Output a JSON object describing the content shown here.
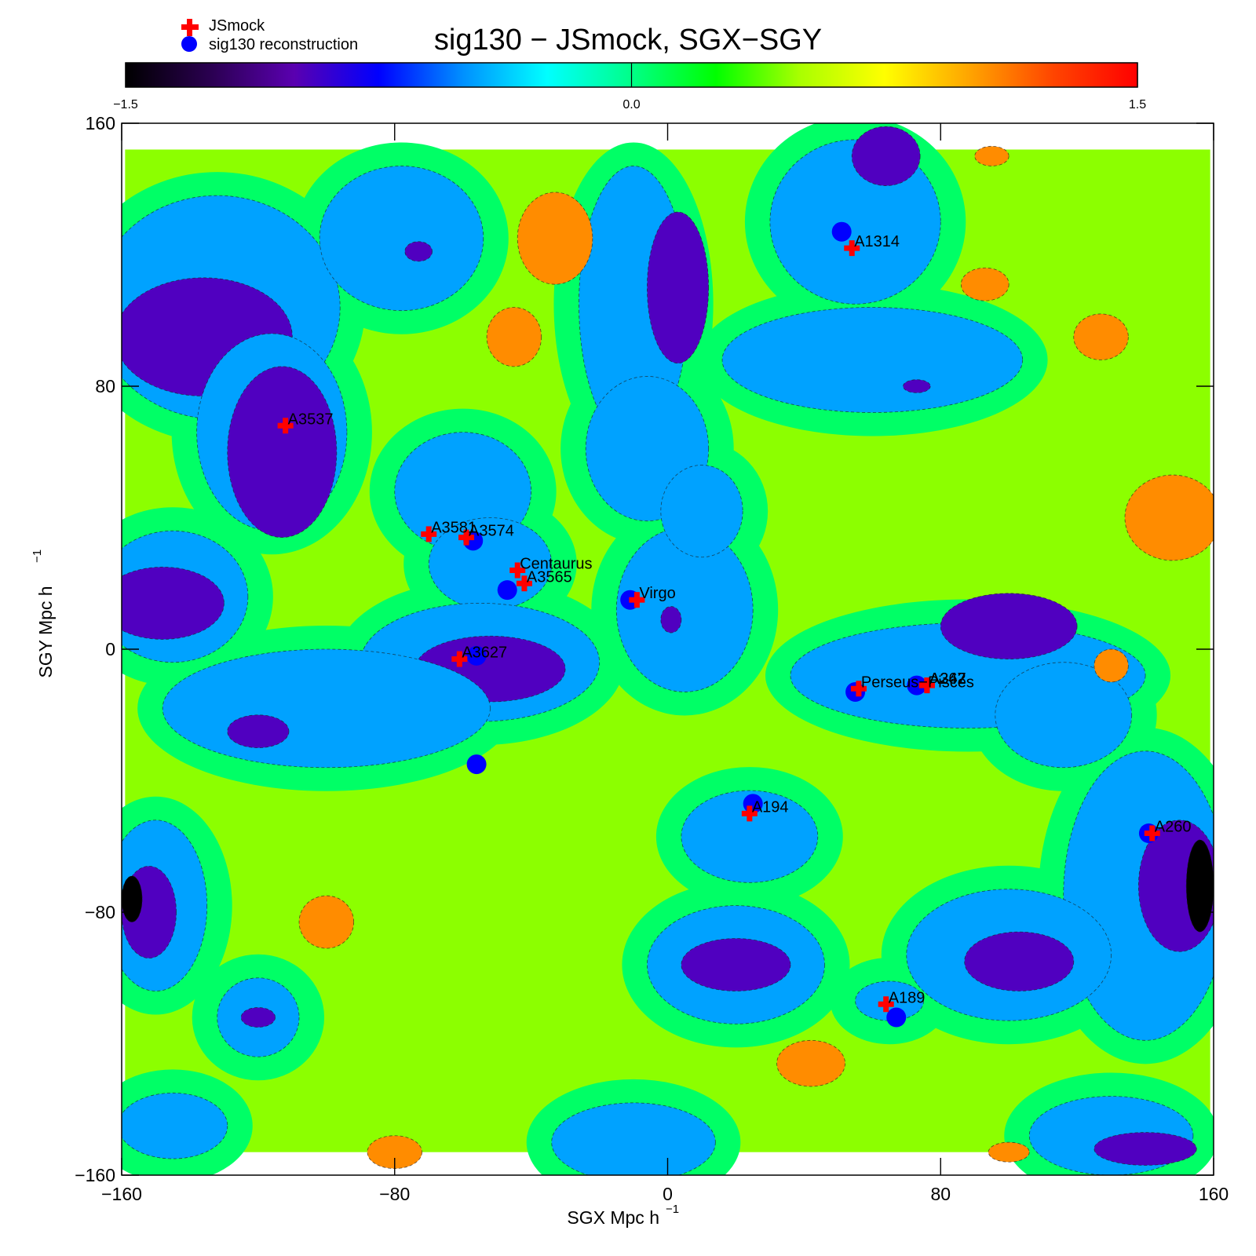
{
  "chart_data": {
    "type": "heatmap",
    "title": "sig130 − JSmock, SGX−SGY",
    "xlabel": "SGX  Mpc h",
    "ylabel": "SGY  Mpc h",
    "unit_superscript": "−1",
    "xlim": [
      -160,
      160
    ],
    "ylim": [
      -160,
      160
    ],
    "xticks": [
      -160,
      -80,
      0,
      80,
      160
    ],
    "yticks": [
      -160,
      -80,
      0,
      80,
      160
    ],
    "xtick_labels": [
      "−160",
      "−80",
      "0",
      "80",
      "160"
    ],
    "ytick_labels": [
      "−160",
      "−80",
      "0",
      "80",
      "160"
    ],
    "colorbar": {
      "range": [
        -1.5,
        1.5
      ],
      "tick_values": [
        -1.5,
        0.0,
        1.5
      ],
      "tick_labels": [
        "−1.5",
        "0.0",
        "1.5"
      ],
      "stops": [
        "#000000",
        "#2a0050",
        "#5a00b0",
        "#0000ff",
        "#0090ff",
        "#00ffff",
        "#00ff88",
        "#00ff00",
        "#aaff00",
        "#ffff00",
        "#ffa500",
        "#ff4500",
        "#ff0000"
      ]
    },
    "level_colors": {
      "very_low": "#000000",
      "low": "#5000c0",
      "below": "#00a2ff",
      "zero": "#00ff66",
      "above": "#8cff00",
      "high": "#ff8c00"
    },
    "field_extent": [
      -159,
      159,
      -153,
      152
    ],
    "grid": false,
    "legend_position": "top-left",
    "legend": [
      {
        "label": "JSmock",
        "marker": "plus",
        "color": "#ff0000"
      },
      {
        "label": "sig130 reconstruction",
        "marker": "circle",
        "color": "#0000ff"
      }
    ],
    "regions": [
      {
        "level": "below",
        "x": -132,
        "y": 104,
        "rx": 36,
        "ry": 34
      },
      {
        "level": "low",
        "x": -136,
        "y": 95,
        "rx": 26,
        "ry": 18
      },
      {
        "level": "below",
        "x": -116,
        "y": 66,
        "rx": 22,
        "ry": 30
      },
      {
        "level": "low",
        "x": -113,
        "y": 60,
        "rx": 16,
        "ry": 26
      },
      {
        "level": "below",
        "x": -78,
        "y": 125,
        "rx": 24,
        "ry": 22
      },
      {
        "level": "low",
        "x": -73,
        "y": 121,
        "rx": 4,
        "ry": 3
      },
      {
        "level": "below",
        "x": -60,
        "y": 48,
        "rx": 20,
        "ry": 18
      },
      {
        "level": "below",
        "x": -52,
        "y": 26,
        "rx": 18,
        "ry": 14
      },
      {
        "level": "below",
        "x": -55,
        "y": -4,
        "rx": 35,
        "ry": 18
      },
      {
        "level": "low",
        "x": -52,
        "y": -6,
        "rx": 22,
        "ry": 10
      },
      {
        "level": "below",
        "x": -100,
        "y": -18,
        "rx": 48,
        "ry": 18
      },
      {
        "level": "low",
        "x": -120,
        "y": -25,
        "rx": 9,
        "ry": 5
      },
      {
        "level": "below",
        "x": -145,
        "y": 16,
        "rx": 22,
        "ry": 20
      },
      {
        "level": "low",
        "x": -148,
        "y": 14,
        "rx": 18,
        "ry": 11
      },
      {
        "level": "below",
        "x": -10,
        "y": 105,
        "rx": 16,
        "ry": 42
      },
      {
        "level": "low",
        "x": 3,
        "y": 110,
        "rx": 9,
        "ry": 23
      },
      {
        "level": "below",
        "x": -6,
        "y": 61,
        "rx": 18,
        "ry": 22
      },
      {
        "level": "below",
        "x": 5,
        "y": 12,
        "rx": 20,
        "ry": 25
      },
      {
        "level": "low",
        "x": 1,
        "y": 9,
        "rx": 3,
        "ry": 4
      },
      {
        "level": "below",
        "x": 10,
        "y": 42,
        "rx": 12,
        "ry": 14
      },
      {
        "level": "below",
        "x": 55,
        "y": 130,
        "rx": 25,
        "ry": 25
      },
      {
        "level": "low",
        "x": 64,
        "y": 150,
        "rx": 10,
        "ry": 9
      },
      {
        "level": "below",
        "x": 60,
        "y": 88,
        "rx": 44,
        "ry": 16
      },
      {
        "level": "low",
        "x": 73,
        "y": 80,
        "rx": 4,
        "ry": 2
      },
      {
        "level": "below",
        "x": 88,
        "y": -8,
        "rx": 52,
        "ry": 16
      },
      {
        "level": "low",
        "x": 100,
        "y": 7,
        "rx": 20,
        "ry": 10
      },
      {
        "level": "below",
        "x": 116,
        "y": -20,
        "rx": 20,
        "ry": 16
      },
      {
        "level": "below",
        "x": 24,
        "y": -57,
        "rx": 20,
        "ry": 14
      },
      {
        "level": "below",
        "x": 140,
        "y": -75,
        "rx": 24,
        "ry": 44
      },
      {
        "level": "low",
        "x": 150,
        "y": -72,
        "rx": 12,
        "ry": 20
      },
      {
        "level": "very_low",
        "x": 156,
        "y": -72,
        "rx": 4,
        "ry": 14
      },
      {
        "level": "below",
        "x": 100,
        "y": -93,
        "rx": 30,
        "ry": 20
      },
      {
        "level": "low",
        "x": 103,
        "y": -95,
        "rx": 16,
        "ry": 9
      },
      {
        "level": "below",
        "x": 20,
        "y": -96,
        "rx": 26,
        "ry": 18
      },
      {
        "level": "low",
        "x": 20,
        "y": -96,
        "rx": 16,
        "ry": 8
      },
      {
        "level": "below",
        "x": -150,
        "y": -78,
        "rx": 15,
        "ry": 26
      },
      {
        "level": "low",
        "x": -152,
        "y": -80,
        "rx": 8,
        "ry": 14
      },
      {
        "level": "very_low",
        "x": -157,
        "y": -76,
        "rx": 3,
        "ry": 7
      },
      {
        "level": "below",
        "x": -120,
        "y": -112,
        "rx": 12,
        "ry": 12
      },
      {
        "level": "low",
        "x": -120,
        "y": -112,
        "rx": 5,
        "ry": 3
      },
      {
        "level": "below",
        "x": -10,
        "y": -150,
        "rx": 24,
        "ry": 12
      },
      {
        "level": "below",
        "x": 130,
        "y": -148,
        "rx": 24,
        "ry": 12
      },
      {
        "level": "low",
        "x": 140,
        "y": -152,
        "rx": 15,
        "ry": 5
      },
      {
        "level": "below",
        "x": 65,
        "y": -107,
        "rx": 10,
        "ry": 6
      },
      {
        "level": "below",
        "x": -145,
        "y": -145,
        "rx": 16,
        "ry": 10
      },
      {
        "level": "high",
        "x": -45,
        "y": 95,
        "rx": 8,
        "ry": 9
      },
      {
        "level": "high",
        "x": -33,
        "y": 125,
        "rx": 11,
        "ry": 14
      },
      {
        "level": "high",
        "x": -100,
        "y": -83,
        "rx": 8,
        "ry": 8
      },
      {
        "level": "high",
        "x": 148,
        "y": 40,
        "rx": 14,
        "ry": 13
      },
      {
        "level": "high",
        "x": 127,
        "y": 95,
        "rx": 8,
        "ry": 7
      },
      {
        "level": "high",
        "x": 130,
        "y": -5,
        "rx": 5,
        "ry": 5
      },
      {
        "level": "high",
        "x": 42,
        "y": -126,
        "rx": 10,
        "ry": 7
      },
      {
        "level": "high",
        "x": -80,
        "y": -153,
        "rx": 8,
        "ry": 5
      },
      {
        "level": "high",
        "x": 93,
        "y": 111,
        "rx": 7,
        "ry": 5
      },
      {
        "level": "high",
        "x": 100,
        "y": -153,
        "rx": 6,
        "ry": 3
      },
      {
        "level": "high",
        "x": 95,
        "y": 150,
        "rx": 5,
        "ry": 3
      }
    ],
    "clusters": [
      {
        "label": "A1314",
        "jsmock": [
          54,
          122
        ],
        "reconstruction": [
          51,
          127
        ]
      },
      {
        "label": "A3537",
        "jsmock": [
          -112,
          68
        ],
        "reconstruction": null
      },
      {
        "label": "A3581",
        "jsmock": [
          -70,
          35
        ],
        "reconstruction": null
      },
      {
        "label": "A3574",
        "jsmock": [
          -59,
          34
        ],
        "reconstruction": [
          -57,
          33
        ]
      },
      {
        "label": "Centaurus",
        "jsmock": [
          -44,
          24
        ],
        "reconstruction": null
      },
      {
        "label": "A3565",
        "jsmock": [
          -42,
          20
        ],
        "reconstruction": [
          -47,
          18
        ]
      },
      {
        "label": "Virgo",
        "jsmock": [
          -9,
          15
        ],
        "reconstruction": [
          -11,
          15
        ]
      },
      {
        "label": "A3627",
        "jsmock": [
          -61,
          -3
        ],
        "reconstruction": [
          -56,
          -2
        ]
      },
      {
        "label": "Perseus−Pisces",
        "jsmock": [
          56,
          -12
        ],
        "reconstruction": [
          55,
          -13
        ]
      },
      {
        "label": "A347",
        "jsmock": [
          76,
          -11
        ],
        "reconstruction": [
          73,
          -11
        ]
      },
      {
        "label": "A262",
        "jsmock": [
          76,
          -11
        ],
        "reconstruction": null
      },
      {
        "label": "A194",
        "jsmock": [
          24,
          -50
        ],
        "reconstruction": [
          25,
          -47
        ]
      },
      {
        "label": "A260",
        "jsmock": [
          142,
          -56
        ],
        "reconstruction": [
          141,
          -56
        ]
      },
      {
        "label": "A189",
        "jsmock": [
          64,
          -108
        ],
        "reconstruction": [
          67,
          -112
        ]
      },
      {
        "label": "",
        "jsmock": null,
        "reconstruction": [
          -56,
          -35
        ]
      }
    ]
  }
}
